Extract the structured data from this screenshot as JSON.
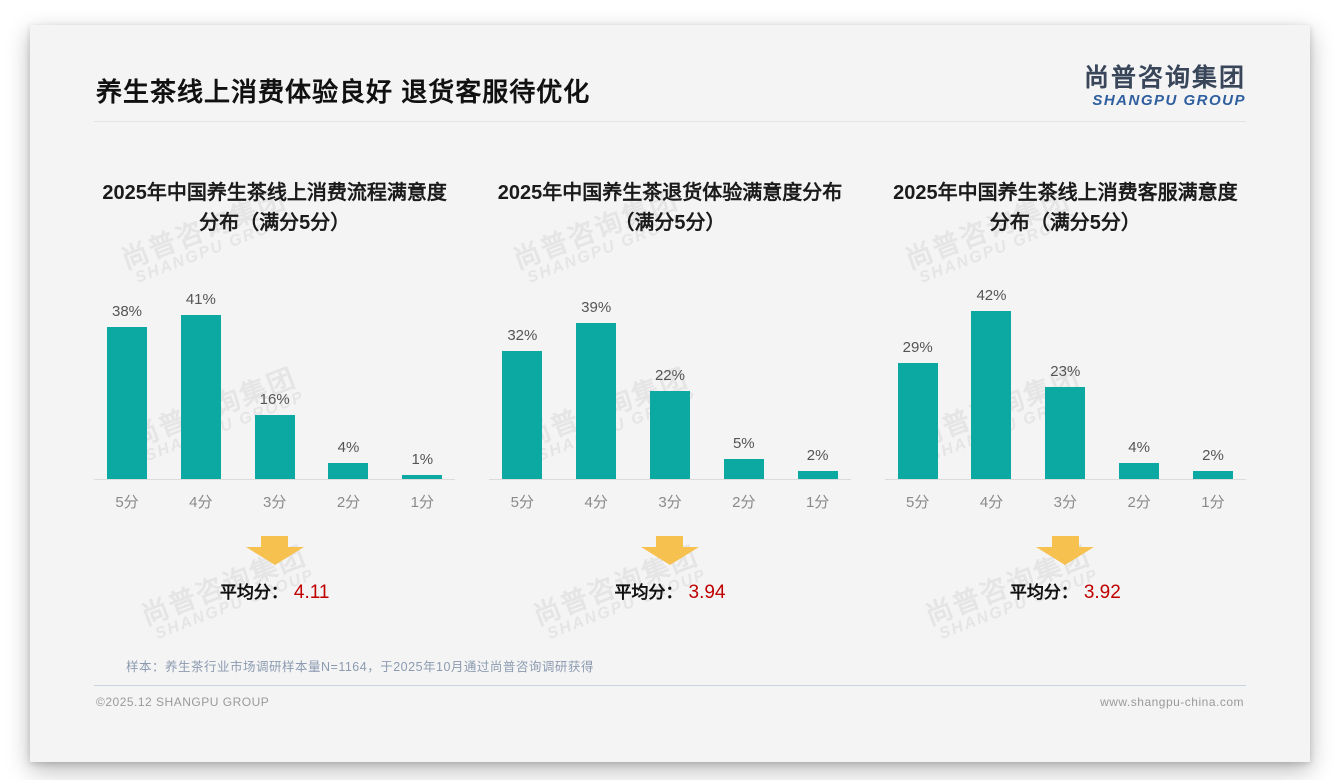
{
  "page": {
    "title": "养生茶线上消费体验良好 退货客服待优化",
    "logo": {
      "cn": "尚普咨询集团",
      "en": "SHANGPU GROUP"
    },
    "watermark": {
      "cn": "尚普咨询集团",
      "en": "SHANGPU GROUP"
    },
    "footer": {
      "sample_note": "样本：养生茶行业市场调研样本量N=1164，于2025年10月通过尚普咨询调研获得",
      "copyright": "©2025.12 SHANGPU GROUP",
      "website": "www.shangpu-china.com"
    }
  },
  "colors": {
    "bar": "#0BA9A2",
    "arrow": "#F6C14F",
    "average_value": "#C00000",
    "logo_en": "#2F5F9F"
  },
  "chart_data": [
    {
      "type": "bar",
      "title": "2025年中国养生茶线上消费流程满意度分布（满分5分）",
      "categories": [
        "5分",
        "4分",
        "3分",
        "2分",
        "1分"
      ],
      "values": [
        38,
        41,
        16,
        4,
        1
      ],
      "unit": "%",
      "ylim": [
        0,
        45
      ],
      "grid": false,
      "average_label": "平均分：",
      "average": "4.11"
    },
    {
      "type": "bar",
      "title": "2025年中国养生茶退货体验满意度分布（满分5分）",
      "categories": [
        "5分",
        "4分",
        "3分",
        "2分",
        "1分"
      ],
      "values": [
        32,
        39,
        22,
        5,
        2
      ],
      "unit": "%",
      "ylim": [
        0,
        45
      ],
      "grid": false,
      "average_label": "平均分：",
      "average": "3.94"
    },
    {
      "type": "bar",
      "title": "2025年中国养生茶线上消费客服满意度分布（满分5分）",
      "categories": [
        "5分",
        "4分",
        "3分",
        "2分",
        "1分"
      ],
      "values": [
        29,
        42,
        23,
        4,
        2
      ],
      "unit": "%",
      "ylim": [
        0,
        45
      ],
      "grid": false,
      "average_label": "平均分：",
      "average": "3.92"
    }
  ]
}
